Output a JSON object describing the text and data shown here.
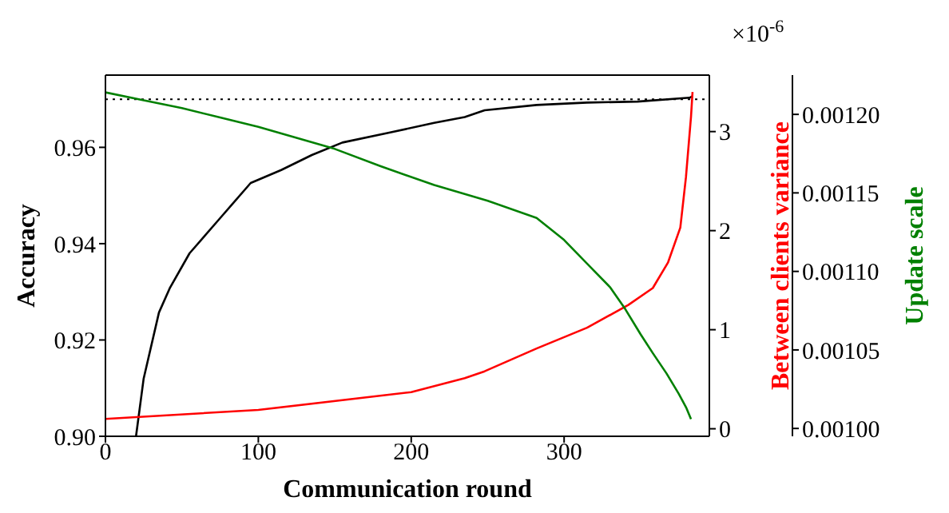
{
  "chart_data": {
    "type": "line",
    "xlabel": "Communication round",
    "ylabel": "Accuracy",
    "y2label": "Between clients variance",
    "y3label": "Update scale",
    "annotations": [
      "×10$^{-6}$"
    ],
    "xlim": [
      0,
      395
    ],
    "xticks": [
      0,
      100,
      200,
      300
    ],
    "ylim": [
      0.9,
      0.975
    ],
    "yticks": [
      {
        "value": 0.9,
        "label": "0.90"
      },
      0.92,
      0.94,
      0.96
    ],
    "y2lim": [
      -0.076,
      3.57
    ],
    "y2ticks": [
      0,
      1,
      2,
      3
    ],
    "y3lim": [
      0.000995,
      0.001225
    ],
    "y3ticks": [
      {
        "value": 0.001,
        "label": "0.00100"
      },
      {
        "value": 0.00105,
        "label": "0.00105"
      },
      {
        "value": 0.0011,
        "label": "0.00110"
      },
      {
        "value": 0.00115,
        "label": "0.00115"
      },
      {
        "value": 0.0012,
        "label": "0.00120"
      }
    ],
    "ref_lines": [
      {
        "axis": "y",
        "value": 0.97,
        "color": "#000000",
        "line_style": "dotted"
      }
    ],
    "series": [
      {
        "color": "#000000",
        "x": [
          20,
          25,
          35,
          42,
          55,
          75,
          95,
          115,
          135,
          155,
          185,
          215,
          235,
          248,
          282,
          315,
          348,
          382,
          384
        ],
        "values": [
          0.9,
          0.912,
          0.9257,
          0.9307,
          0.938,
          0.9453,
          0.9526,
          0.9553,
          0.9584,
          0.961,
          0.963,
          0.9651,
          0.9663,
          0.9677,
          0.9688,
          0.9693,
          0.9695,
          0.9703,
          0.9706
        ]
      },
      {
        "color": "#ff0000",
        "axis": "y2",
        "x": [
          0,
          100,
          200,
          215,
          235,
          248,
          282,
          315,
          342,
          358,
          368,
          376,
          379.7,
          383,
          384
        ],
        "values": [
          0.1,
          0.19,
          0.37,
          0.43,
          0.51,
          0.58,
          0.81,
          1.02,
          1.25,
          1.42,
          1.68,
          2.03,
          2.54,
          3.15,
          3.4
        ]
      },
      {
        "color": "#008000",
        "axis": "y3",
        "x": [
          0,
          25,
          50,
          75,
          100,
          125,
          150,
          180,
          215,
          250,
          282,
          300,
          315,
          330,
          340,
          350,
          358,
          367,
          375,
          380,
          383
        ],
        "values": [
          0.001214,
          0.001209,
          0.001204,
          0.001198,
          0.001192,
          0.001185,
          0.001178,
          0.001167,
          0.001155,
          0.001145,
          0.001134,
          0.00112,
          0.001105,
          0.00109,
          0.001076,
          0.00106,
          0.001048,
          0.001035,
          0.001022,
          0.001013,
          0.001006
        ]
      }
    ]
  }
}
